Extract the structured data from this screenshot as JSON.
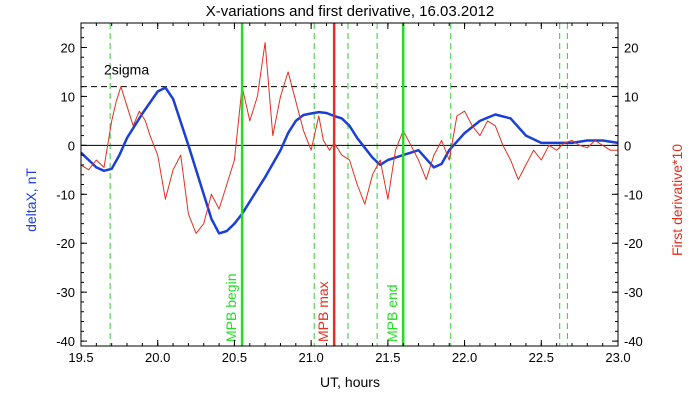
{
  "chart_data": {
    "type": "line",
    "title": "X-variations and first derivative, 16.03.2012",
    "xlabel": "UT, hours",
    "ylabel_left": "deltaX, nT",
    "ylabel_right": "First derivative*10",
    "xlim": [
      19.5,
      23.0
    ],
    "ylim_left": [
      -41,
      25
    ],
    "ylim_right": [
      -41,
      25
    ],
    "x_ticks": [
      19.5,
      20.0,
      20.5,
      21.0,
      21.5,
      22.0,
      22.5,
      23.0
    ],
    "x_tick_labels": [
      "19.5",
      "20.0",
      "20.5",
      "21.0",
      "21.5",
      "22.0",
      "22.5",
      "23.0"
    ],
    "y_ticks": [
      -40,
      -30,
      -20,
      -10,
      0,
      10,
      20
    ],
    "y_tick_labels": [
      "-40",
      "-30",
      "-20",
      "-10",
      "0",
      "10",
      "20"
    ],
    "series": [
      {
        "name": "deltaX, nT",
        "color": "#1a3fd6",
        "axis": "left",
        "x": [
          19.5,
          19.55,
          19.6,
          19.65,
          19.7,
          19.75,
          19.8,
          19.9,
          20.0,
          20.05,
          20.1,
          20.2,
          20.3,
          20.35,
          20.4,
          20.45,
          20.5,
          20.55,
          20.6,
          20.7,
          20.8,
          20.85,
          20.9,
          20.95,
          21.0,
          21.05,
          21.1,
          21.15,
          21.2,
          21.25,
          21.3,
          21.35,
          21.4,
          21.45,
          21.5,
          21.55,
          21.6,
          21.7,
          21.8,
          21.85,
          21.9,
          22.0,
          22.1,
          22.2,
          22.3,
          22.4,
          22.5,
          22.6,
          22.7,
          22.8,
          22.9,
          23.0
        ],
        "y": [
          -1.5,
          -3,
          -4.5,
          -5.2,
          -4.8,
          -2,
          1.5,
          6.5,
          11,
          11.8,
          9.5,
          0,
          -10,
          -15,
          -18,
          -17.5,
          -16,
          -14,
          -11.5,
          -6.5,
          -1,
          2.5,
          5,
          6.2,
          6.5,
          6.8,
          6.6,
          6,
          5.5,
          4,
          1.5,
          -0.5,
          -2.5,
          -4,
          -3,
          -2.5,
          -2,
          -1,
          -4.5,
          -3.8,
          -1,
          2.5,
          5,
          6.3,
          5.5,
          2,
          0.5,
          0.5,
          0.5,
          1,
          1,
          0.5
        ]
      },
      {
        "name": "First derivative*10",
        "color": "#e0301e",
        "axis": "right",
        "x": [
          19.5,
          19.55,
          19.6,
          19.65,
          19.7,
          19.73,
          19.76,
          19.8,
          19.84,
          19.88,
          19.92,
          19.95,
          20.0,
          20.05,
          20.1,
          20.15,
          20.2,
          20.25,
          20.3,
          20.35,
          20.4,
          20.45,
          20.5,
          20.55,
          20.6,
          20.65,
          20.7,
          20.75,
          20.8,
          20.85,
          20.9,
          20.95,
          21.0,
          21.05,
          21.08,
          21.12,
          21.15,
          21.2,
          21.25,
          21.3,
          21.35,
          21.4,
          21.45,
          21.5,
          21.55,
          21.6,
          21.65,
          21.7,
          21.75,
          21.8,
          21.85,
          21.9,
          21.95,
          22.0,
          22.05,
          22.1,
          22.15,
          22.2,
          22.25,
          22.3,
          22.35,
          22.4,
          22.45,
          22.5,
          22.55,
          22.6,
          22.65,
          22.7,
          22.75,
          22.8,
          22.85,
          22.9,
          22.95,
          23.0
        ],
        "y": [
          -4,
          -5,
          -3,
          -4.5,
          5,
          9,
          12,
          8,
          4,
          7,
          5,
          2,
          -2,
          -11,
          -5,
          -2,
          -14,
          -18,
          -16,
          -10,
          -13,
          -8,
          -3,
          12,
          5,
          10,
          21,
          2,
          10,
          15,
          9,
          3,
          -1,
          6,
          1,
          -1,
          0.5,
          -2,
          -3,
          -8,
          -12,
          -6,
          -3,
          -11,
          -1,
          3,
          0,
          -3,
          -7,
          -2,
          1,
          -3,
          6,
          7,
          4,
          2,
          5,
          4,
          0,
          -3,
          -7,
          -4,
          -1,
          -3,
          0,
          -1,
          0.5,
          1,
          0,
          -0.5,
          1,
          0,
          -1,
          -1
        ]
      }
    ],
    "threshold_lines": [
      {
        "label": "2sigma",
        "value": 12,
        "style": "dashed",
        "color": "#000000"
      },
      {
        "label": "",
        "value": 0,
        "style": "solid",
        "color": "#000000"
      }
    ],
    "vertical_markers": [
      {
        "label": "MPB begin",
        "x": 20.55,
        "color": "#22dd22",
        "style": "solid"
      },
      {
        "label": "MPB max",
        "x": 21.15,
        "color": "#e0301e",
        "style": "solid"
      },
      {
        "label": "MPB end",
        "x": 21.6,
        "color": "#22dd22",
        "style": "solid"
      }
    ],
    "dashed_markers": {
      "color": "#33cc33",
      "x": [
        19.69,
        21.02,
        21.24,
        21.43,
        21.91,
        22.62,
        22.67
      ]
    },
    "grid": false,
    "legend": "none"
  }
}
